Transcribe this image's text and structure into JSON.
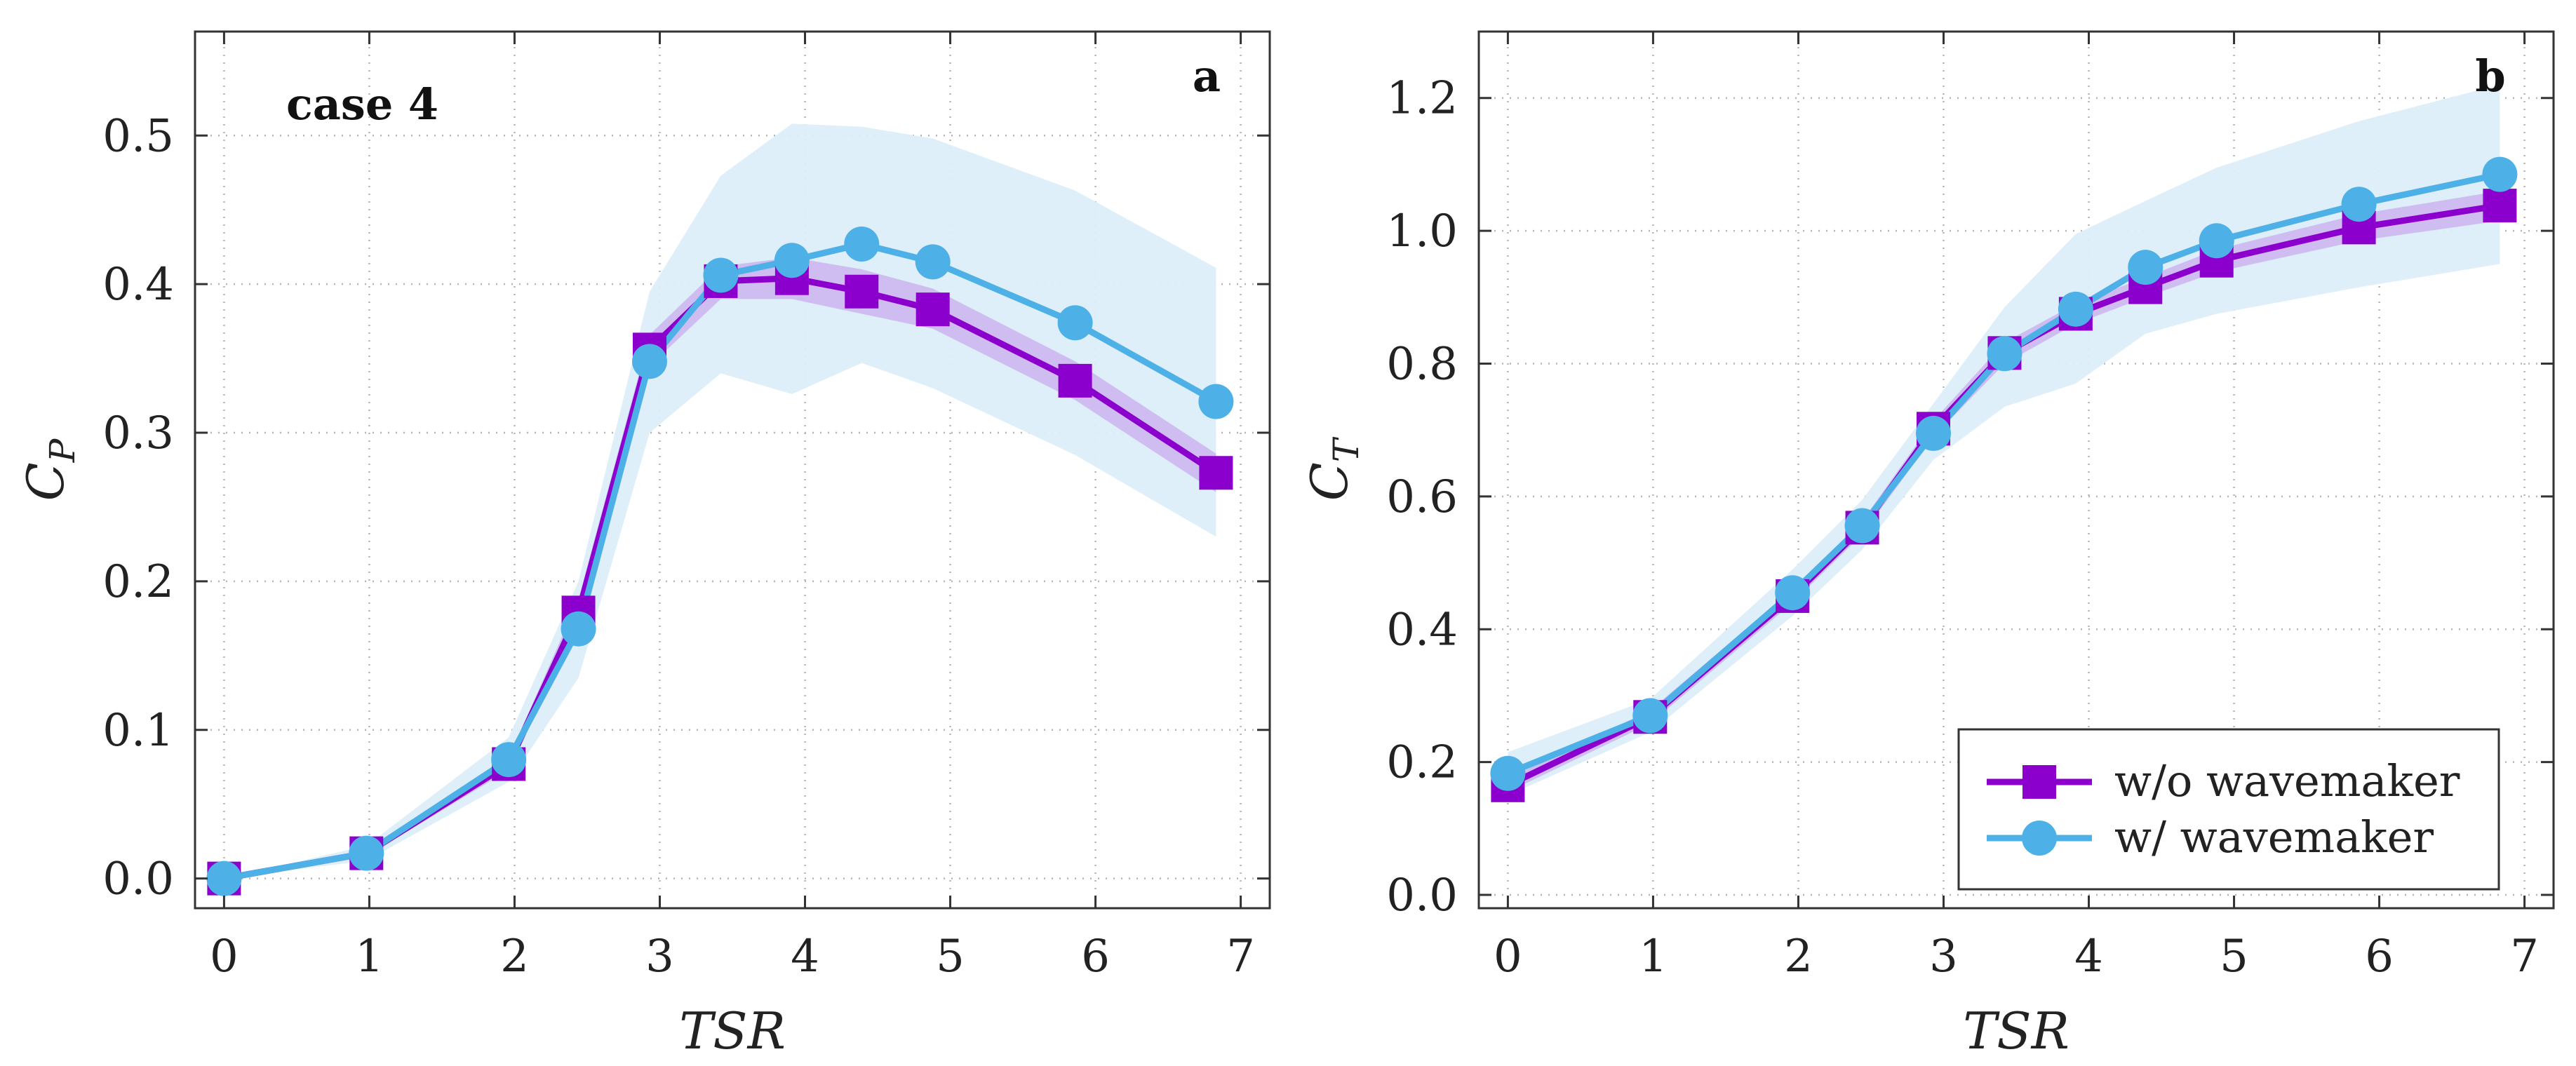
{
  "colors": {
    "wo_wavemaker": "#8B00CC",
    "wo_band": "#C9A8F0",
    "w_wavemaker": "#4DB0E6",
    "w_band": "#DCEEF9"
  },
  "legend": {
    "items": [
      {
        "label": "w/o wavemaker",
        "marker": "square",
        "color": "#8B00CC"
      },
      {
        "label": "w/ wavemaker",
        "marker": "circle",
        "color": "#4DB0E6"
      }
    ]
  },
  "chart_data": [
    {
      "type": "line",
      "panel": "a",
      "annotation": "case 4",
      "xlabel": "TSR",
      "ylabel": "C",
      "ylabel_sub": "P",
      "xlim": [
        -0.2,
        7.2
      ],
      "ylim": [
        -0.02,
        0.57
      ],
      "xticks": [
        0,
        1,
        2,
        3,
        4,
        5,
        6,
        7
      ],
      "yticks": [
        0.0,
        0.1,
        0.2,
        0.3,
        0.4,
        0.5
      ],
      "ytick_labels": [
        "0.0",
        "0.1",
        "0.2",
        "0.3",
        "0.4",
        "0.5"
      ],
      "grid": true,
      "series": [
        {
          "name": "w/o wavemaker",
          "x": [
            0.0,
            0.98,
            1.96,
            2.44,
            2.93,
            3.42,
            3.91,
            4.39,
            4.88,
            5.86,
            6.83
          ],
          "y": [
            0.0,
            0.017,
            0.077,
            0.179,
            0.356,
            0.402,
            0.404,
            0.395,
            0.383,
            0.335,
            0.273
          ],
          "band_low": [
            0.0,
            0.015,
            0.073,
            0.17,
            0.345,
            0.39,
            0.39,
            0.38,
            0.37,
            0.322,
            0.26
          ],
          "band_high": [
            0.0,
            0.019,
            0.081,
            0.188,
            0.366,
            0.412,
            0.418,
            0.41,
            0.397,
            0.348,
            0.286
          ]
        },
        {
          "name": "w/ wavemaker",
          "x": [
            0.0,
            0.98,
            1.96,
            2.44,
            2.93,
            3.42,
            3.91,
            4.39,
            4.88,
            5.86,
            6.83
          ],
          "y": [
            0.0,
            0.017,
            0.08,
            0.168,
            0.348,
            0.406,
            0.416,
            0.427,
            0.415,
            0.374,
            0.321
          ],
          "band_low": [
            0.0,
            0.012,
            0.065,
            0.135,
            0.3,
            0.34,
            0.326,
            0.347,
            0.33,
            0.285,
            0.23
          ],
          "band_high": [
            0.0,
            0.022,
            0.095,
            0.2,
            0.395,
            0.473,
            0.508,
            0.506,
            0.498,
            0.463,
            0.411
          ]
        }
      ]
    },
    {
      "type": "line",
      "panel": "b",
      "xlabel": "TSR",
      "ylabel": "C",
      "ylabel_sub": "T",
      "xlim": [
        -0.2,
        7.2
      ],
      "ylim": [
        -0.02,
        1.3
      ],
      "xticks": [
        0,
        1,
        2,
        3,
        4,
        5,
        6,
        7
      ],
      "yticks": [
        0.0,
        0.2,
        0.4,
        0.6,
        0.8,
        1.0,
        1.2
      ],
      "ytick_labels": [
        "0.0",
        "0.2",
        "0.4",
        "0.6",
        "0.8",
        "1.0",
        "1.2"
      ],
      "grid": true,
      "legend_position": "bottom-right",
      "series": [
        {
          "name": "w/o wavemaker",
          "x": [
            0.0,
            0.98,
            1.96,
            2.44,
            2.93,
            3.42,
            3.91,
            4.39,
            4.88,
            5.86,
            6.83
          ],
          "y": [
            0.165,
            0.268,
            0.45,
            0.553,
            0.702,
            0.816,
            0.875,
            0.915,
            0.955,
            1.005,
            1.038
          ],
          "band_low": [
            0.155,
            0.258,
            0.44,
            0.543,
            0.69,
            0.8,
            0.86,
            0.9,
            0.938,
            0.985,
            1.015
          ],
          "band_high": [
            0.175,
            0.278,
            0.46,
            0.563,
            0.714,
            0.832,
            0.89,
            0.93,
            0.972,
            1.025,
            1.06
          ]
        },
        {
          "name": "w/ wavemaker",
          "x": [
            0.0,
            0.98,
            1.96,
            2.44,
            2.93,
            3.42,
            3.91,
            4.39,
            4.88,
            5.86,
            6.83
          ],
          "y": [
            0.183,
            0.27,
            0.455,
            0.556,
            0.695,
            0.815,
            0.882,
            0.945,
            0.985,
            1.04,
            1.085
          ],
          "band_low": [
            0.15,
            0.245,
            0.42,
            0.52,
            0.655,
            0.735,
            0.77,
            0.845,
            0.875,
            0.915,
            0.95
          ],
          "band_high": [
            0.215,
            0.295,
            0.49,
            0.595,
            0.74,
            0.885,
            0.995,
            1.045,
            1.095,
            1.165,
            1.22
          ]
        }
      ]
    }
  ]
}
